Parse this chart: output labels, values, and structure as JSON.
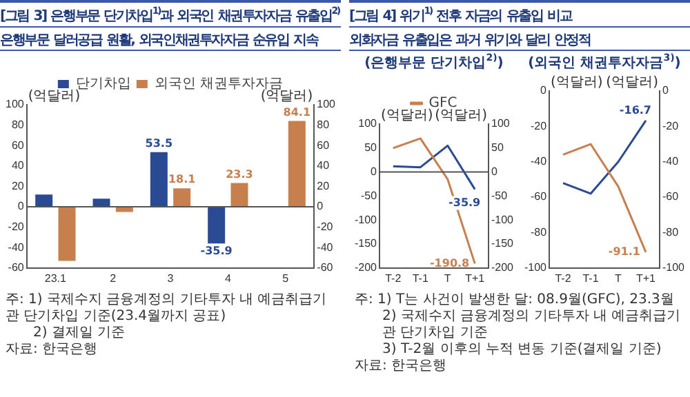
{
  "chart_data": [
    {
      "type": "bar",
      "title": "[그림 3] 은행부문 단기차입$^{1)}$과 외국인 채권투자자금 유출입$^{2)}$",
      "subtitle": "은행부문 달러공급 원활, 외국인채권투자자금 순유입 지속",
      "ylabel": "(억달러)",
      "y2label": "(억달러)",
      "categories": [
        "23.1",
        "2",
        "3",
        "4",
        "5"
      ],
      "series": [
        {
          "name": "단기차입",
          "color": "#2b4a94",
          "values": [
            12,
            8,
            53.5,
            -35.9,
            null
          ],
          "value_labels": [
            null,
            null,
            "53.5",
            "-35.9",
            null
          ]
        },
        {
          "name": "외국인 채권투자자금",
          "color": "#c87f4e",
          "values": [
            -53,
            -5,
            18.1,
            23.3,
            84.1
          ],
          "value_labels": [
            null,
            null,
            "18.1",
            "23.3",
            "84.1"
          ]
        }
      ],
      "ylim": [
        -60,
        100
      ],
      "yticks": [
        -60,
        -40,
        -20,
        0,
        20,
        40,
        60,
        80,
        100
      ],
      "y2lim": [
        -60,
        100
      ],
      "y2ticks": [
        -60,
        -40,
        -20,
        0,
        20,
        40,
        60,
        80,
        100
      ],
      "ref_lines": [
        {
          "axis": "y",
          "value": 0
        }
      ],
      "grid": false,
      "legend": "top",
      "annotations": [
        "주: 1) 국제수지 금융계정의 기타투자 내 예금취급기관 단기차입 기준(23.4월까지 공표)",
        "2) 결제일 기준",
        "자료: 한국은행"
      ]
    },
    {
      "type": "line",
      "title": "[그림 4] 위기$^{1)}$ 전후 자금의 유출입 비교",
      "subtitle": "외화자금 유출입은 과거 위기와 달리 안정적",
      "ylabel": "(억달러)",
      "y2label": "(억달러)",
      "categories": [
        "T-2",
        "T-1",
        "T",
        "T+1"
      ],
      "series": [
        {
          "name": "GFC",
          "color": "#c87f4e",
          "values": [
            50,
            70,
            -15,
            -190.8
          ],
          "value_labels": [
            null,
            null,
            null,
            "-190.8"
          ]
        },
        {
          "color": "#2b4a94",
          "values": [
            12,
            10,
            55,
            -35.9
          ],
          "value_labels": [
            null,
            null,
            null,
            "-35.9"
          ]
        }
      ],
      "ylim": [
        -200,
        100
      ],
      "yticks": [
        -200,
        -150,
        -100,
        -50,
        0,
        50,
        100
      ],
      "y2lim": [
        -200,
        100
      ],
      "y2ticks": [
        -200,
        -150,
        -100,
        -50,
        0,
        50,
        100
      ],
      "ref_lines": [
        {
          "axis": "y",
          "value": 0
        }
      ],
      "grid": false,
      "legend": "top",
      "marker": "none",
      "annotations": [
        "(은행부문 단기차입$^{2)}$)",
        "주: 1) T는 사건이 발생한 달: 08.9월(GFC), 23.3월",
        "2) 국제수지 금융계정의 기타투자 내 예금취급기관 단기차입 기준",
        "3) T-2월 이후의 누적 변동 기준(결제일 기준)",
        "자료: 한국은행"
      ]
    },
    {
      "type": "line",
      "title": "(외국인 채권투자자금$^{3)}$)",
      "ylabel": "(억달러)",
      "y2label": "(억달러)",
      "categories": [
        "T-2",
        "T-1",
        "T",
        "T+1"
      ],
      "series": [
        {
          "color": "#c87f4e",
          "values": [
            -36,
            -30,
            -54,
            -91.1
          ],
          "value_labels": [
            null,
            null,
            null,
            "-91.1"
          ]
        },
        {
          "color": "#2b4a94",
          "values": [
            -52,
            -58,
            -40,
            -16.7
          ],
          "value_labels": [
            null,
            null,
            null,
            "-16.7"
          ]
        }
      ],
      "ylim": [
        -100,
        0
      ],
      "yticks": [
        -100,
        -80,
        -60,
        -40,
        -20,
        0
      ],
      "y2lim": [
        -100,
        0
      ],
      "y2ticks": [
        -100,
        -80,
        -60,
        -40,
        -20,
        0
      ],
      "grid": false,
      "marker": "none"
    }
  ]
}
